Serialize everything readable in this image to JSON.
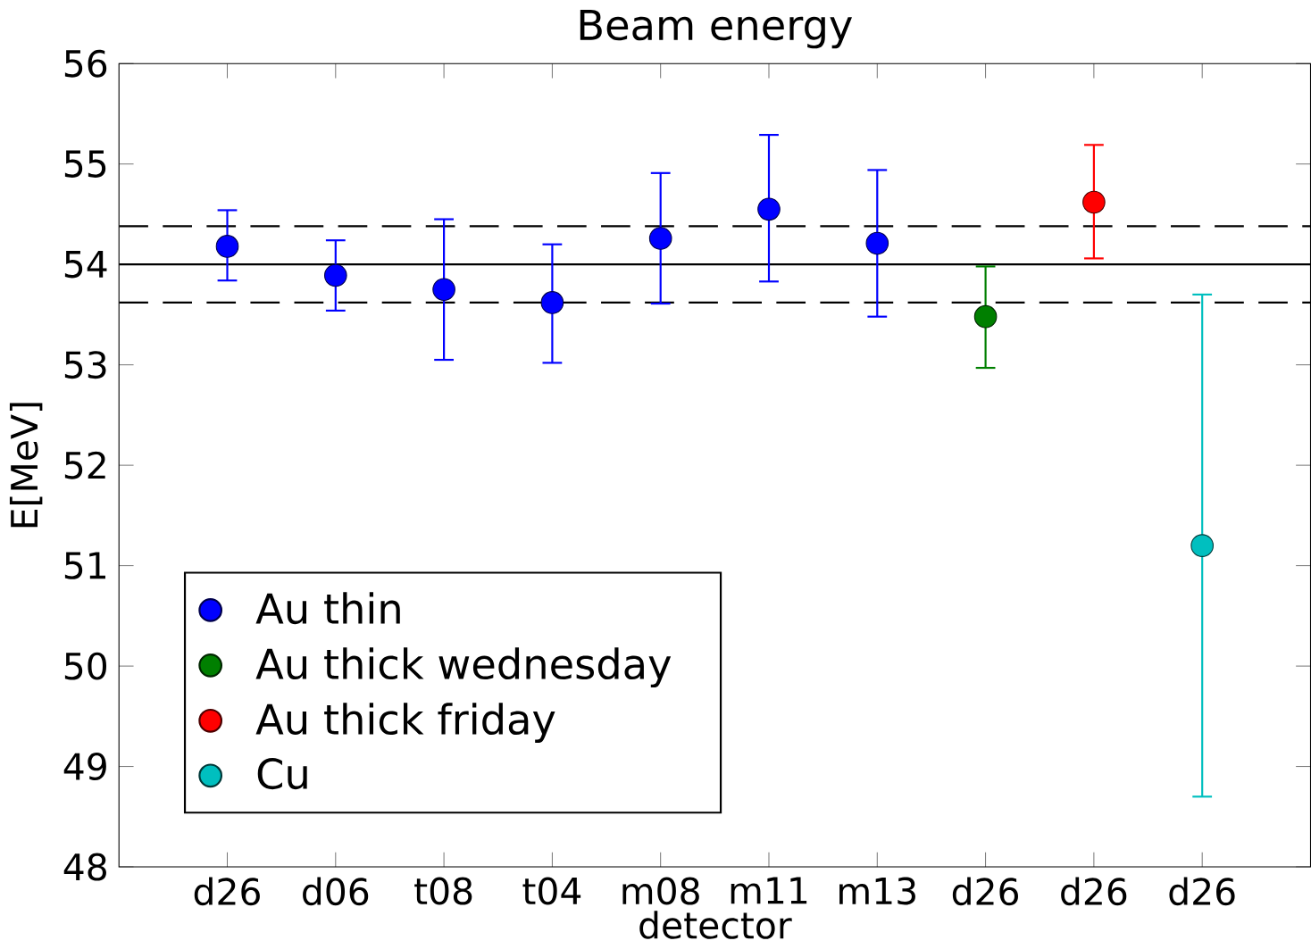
{
  "chart_data": {
    "type": "scatter",
    "title": "Beam energy",
    "xlabel": "detector",
    "ylabel": "E[MeV]",
    "categories": [
      "d26",
      "d06",
      "t08",
      "t04",
      "m08",
      "m11",
      "m13",
      "d26",
      "d26",
      "d26"
    ],
    "ylim": [
      48,
      56
    ],
    "yticks": [
      48,
      49,
      50,
      51,
      52,
      53,
      54,
      55,
      56
    ],
    "marker": "circle",
    "grid": false,
    "legend": "bottom left",
    "ref_lines": [
      {
        "axis": "y",
        "value": 54.0,
        "line_style": "solid",
        "color": "#000000"
      },
      {
        "axis": "y",
        "value": 54.38,
        "line_style": "dashed",
        "color": "#000000"
      },
      {
        "axis": "y",
        "value": 53.62,
        "line_style": "dashed",
        "color": "#000000"
      }
    ],
    "series": [
      {
        "name": "Au thin",
        "color": "#0000ff",
        "values": [
          54.18,
          53.89,
          53.75,
          53.62,
          54.26,
          54.55,
          54.21,
          null,
          null,
          null
        ],
        "errors": [
          [
            53.84,
            54.54
          ],
          [
            53.54,
            54.24
          ],
          [
            53.05,
            54.45
          ],
          [
            53.02,
            54.2
          ],
          [
            53.61,
            54.91
          ],
          [
            53.83,
            55.29
          ],
          [
            53.48,
            54.94
          ],
          null,
          null,
          null
        ]
      },
      {
        "name": "Au thick wednesday",
        "color": "#007f00",
        "values": [
          null,
          null,
          null,
          null,
          null,
          null,
          null,
          53.48,
          null,
          null
        ],
        "errors": [
          null,
          null,
          null,
          null,
          null,
          null,
          null,
          [
            52.97,
            53.98
          ],
          null,
          null
        ]
      },
      {
        "name": "Au thick friday",
        "color": "#ff0000",
        "values": [
          null,
          null,
          null,
          null,
          null,
          null,
          null,
          null,
          54.62,
          null
        ],
        "errors": [
          null,
          null,
          null,
          null,
          null,
          null,
          null,
          null,
          [
            54.06,
            55.19
          ],
          null
        ]
      },
      {
        "name": "Cu",
        "color": "#00bfbf",
        "values": [
          null,
          null,
          null,
          null,
          null,
          null,
          null,
          null,
          null,
          51.2
        ],
        "errors": [
          null,
          null,
          null,
          null,
          null,
          null,
          null,
          null,
          null,
          [
            48.7,
            53.7
          ]
        ]
      }
    ]
  }
}
